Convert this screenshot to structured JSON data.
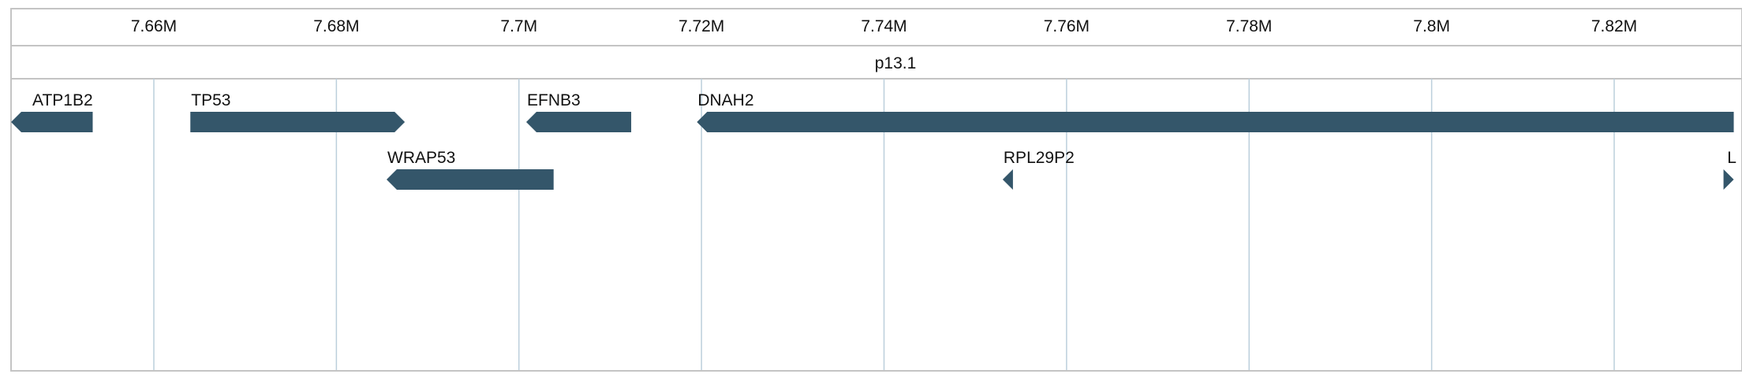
{
  "ruler": {
    "ticks": [
      "7.66M",
      "7.68M",
      "7.7M",
      "7.72M",
      "7.74M",
      "7.76M",
      "7.78M",
      "7.8M",
      "7.82M"
    ]
  },
  "band": {
    "label": "p13.1"
  },
  "genes": [
    {
      "name": "ATP1B2",
      "start_mb": 7.6423,
      "end_mb": 7.6533,
      "strand": "-",
      "row": 0
    },
    {
      "name": "TP53",
      "start_mb": 7.664,
      "end_mb": 7.6875,
      "strand": "+",
      "row": 0
    },
    {
      "name": "EFNB3",
      "start_mb": 7.7008,
      "end_mb": 7.7123,
      "strand": "-",
      "row": 0
    },
    {
      "name": "DNAH2",
      "start_mb": 7.7195,
      "end_mb": 7.8331,
      "strand": "-",
      "row": 0
    },
    {
      "name": "WRAP53",
      "start_mb": 7.6855,
      "end_mb": 7.7038,
      "strand": "-",
      "row": 1
    },
    {
      "name": "RPL29P2",
      "start_mb": 7.753,
      "end_mb": 7.7537,
      "strand": "-",
      "row": 1
    },
    {
      "name": "L",
      "start_mb": 7.8323,
      "end_mb": 7.8331,
      "strand": "+",
      "row": 1
    }
  ],
  "colors": {
    "gene": "#34566a",
    "gridline": "#bccfdc",
    "frame": "#c4c4c4"
  }
}
